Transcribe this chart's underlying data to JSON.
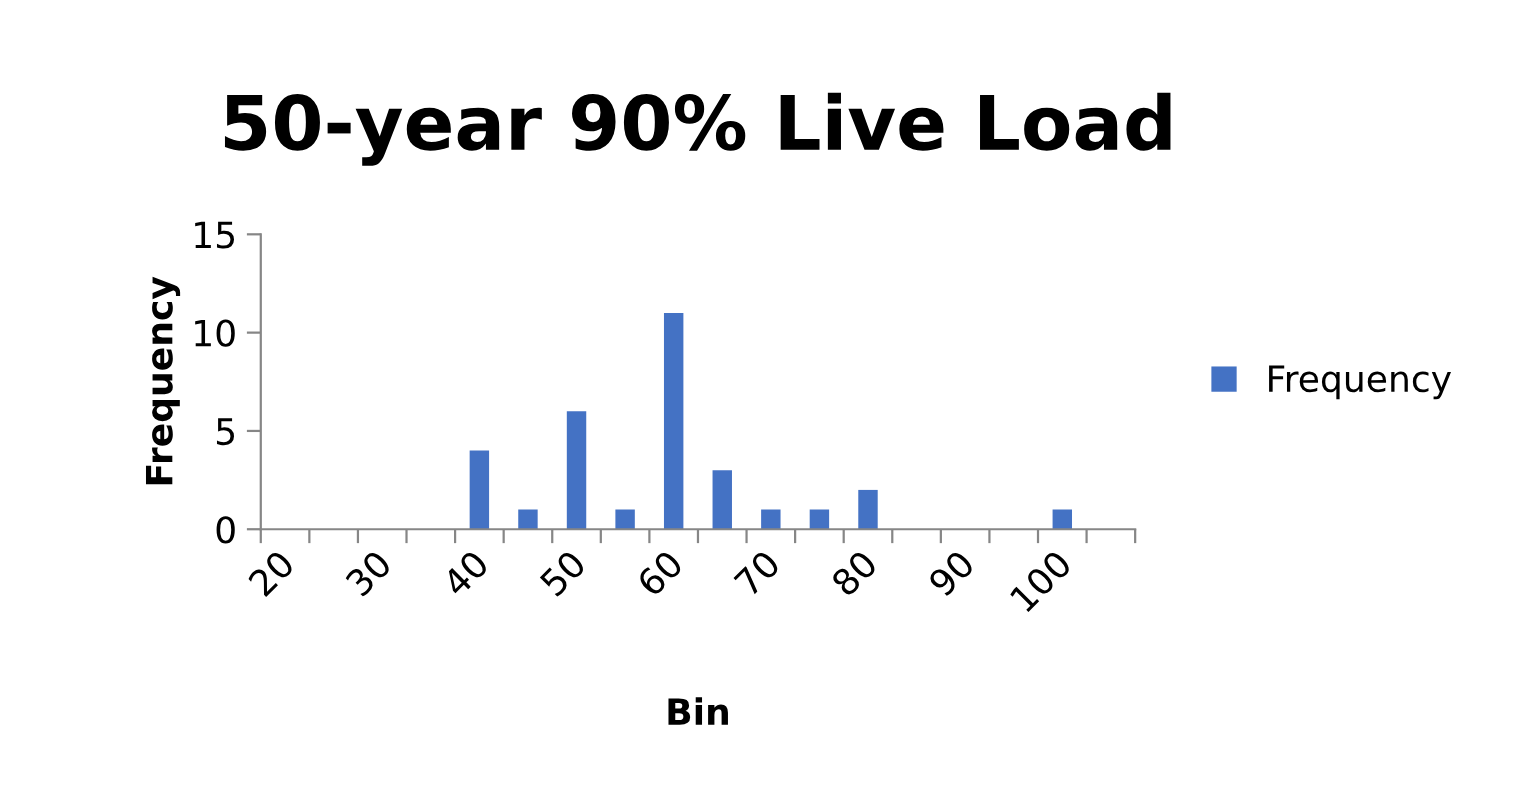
{
  "chart_data": {
    "type": "bar",
    "title": "50-year 90% Live Load",
    "xlabel": "Bin",
    "ylabel": "Frequency",
    "categories": [
      "20",
      null,
      "30",
      null,
      "40",
      null,
      "50",
      null,
      "60",
      null,
      "70",
      null,
      "80",
      null,
      "90",
      null,
      "100",
      null
    ],
    "series": [
      {
        "name": "Frequency",
        "color": "#4472c4",
        "values": [
          0,
          0,
          0,
          0,
          4,
          1,
          6,
          1,
          11,
          3,
          1,
          1,
          2,
          0,
          0,
          0,
          1,
          0
        ]
      }
    ],
    "ylim": [
      0,
      15
    ],
    "yticks": [
      0,
      5,
      10,
      15
    ],
    "grid": false,
    "legend": "right"
  }
}
